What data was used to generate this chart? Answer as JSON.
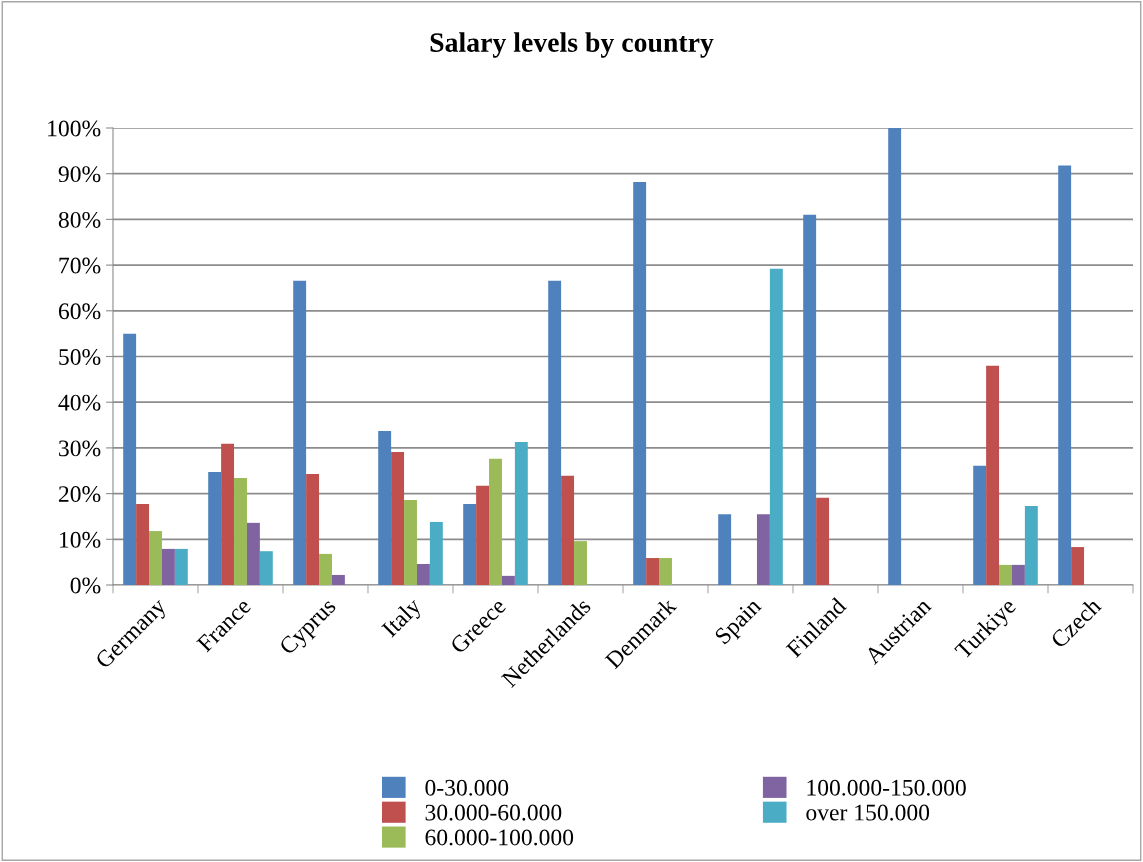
{
  "chart_data": {
    "type": "bar",
    "title": "Salary levels by country",
    "categories": [
      "Germany",
      "France",
      "Cyprus",
      "Italy",
      "Greece",
      "Netherlands",
      "Denmark",
      "Spain",
      "Finland",
      "Austrian",
      "Turkiye",
      "Czech"
    ],
    "series": [
      {
        "name": "0-30.000",
        "color": "#4f81bd",
        "values": [
          55,
          24.7,
          66.6,
          33.7,
          17.7,
          66.6,
          88.2,
          15.5,
          81.0,
          100,
          26.1,
          91.8
        ]
      },
      {
        "name": "30.000-60.000",
        "color": "#c0504d",
        "values": [
          17.7,
          30.9,
          24.3,
          29.1,
          21.7,
          23.9,
          5.9,
          null,
          19.1,
          null,
          48.0,
          8.3
        ]
      },
      {
        "name": "60.000-100.000",
        "color": "#9bbb59",
        "values": [
          11.8,
          23.4,
          6.8,
          18.6,
          27.6,
          9.6,
          5.9,
          null,
          null,
          null,
          4.4,
          null
        ]
      },
      {
        "name": "100.000-150.000",
        "color": "#8064a2",
        "values": [
          7.9,
          13.6,
          2.2,
          4.6,
          2.0,
          null,
          null,
          15.5,
          null,
          null,
          4.4,
          null
        ]
      },
      {
        "name": "over 150.000",
        "color": "#4bacc6",
        "values": [
          7.9,
          7.4,
          null,
          13.8,
          31.3,
          null,
          null,
          69.2,
          null,
          null,
          17.3,
          null
        ]
      }
    ],
    "ylim": [
      0,
      100
    ],
    "yticks": [
      {
        "value": 0,
        "label": "0%"
      },
      {
        "value": 10,
        "label": "10%"
      },
      {
        "value": 20,
        "label": "20%"
      },
      {
        "value": 30,
        "label": "30%"
      },
      {
        "value": 40,
        "label": "40%"
      },
      {
        "value": 50,
        "label": "50%"
      },
      {
        "value": 60,
        "label": "60%"
      },
      {
        "value": 70,
        "label": "70%"
      },
      {
        "value": 80,
        "label": "80%"
      },
      {
        "value": 90,
        "label": "90%"
      },
      {
        "value": 100,
        "label": "100%"
      }
    ],
    "grid": "y",
    "legend": "bottom"
  }
}
